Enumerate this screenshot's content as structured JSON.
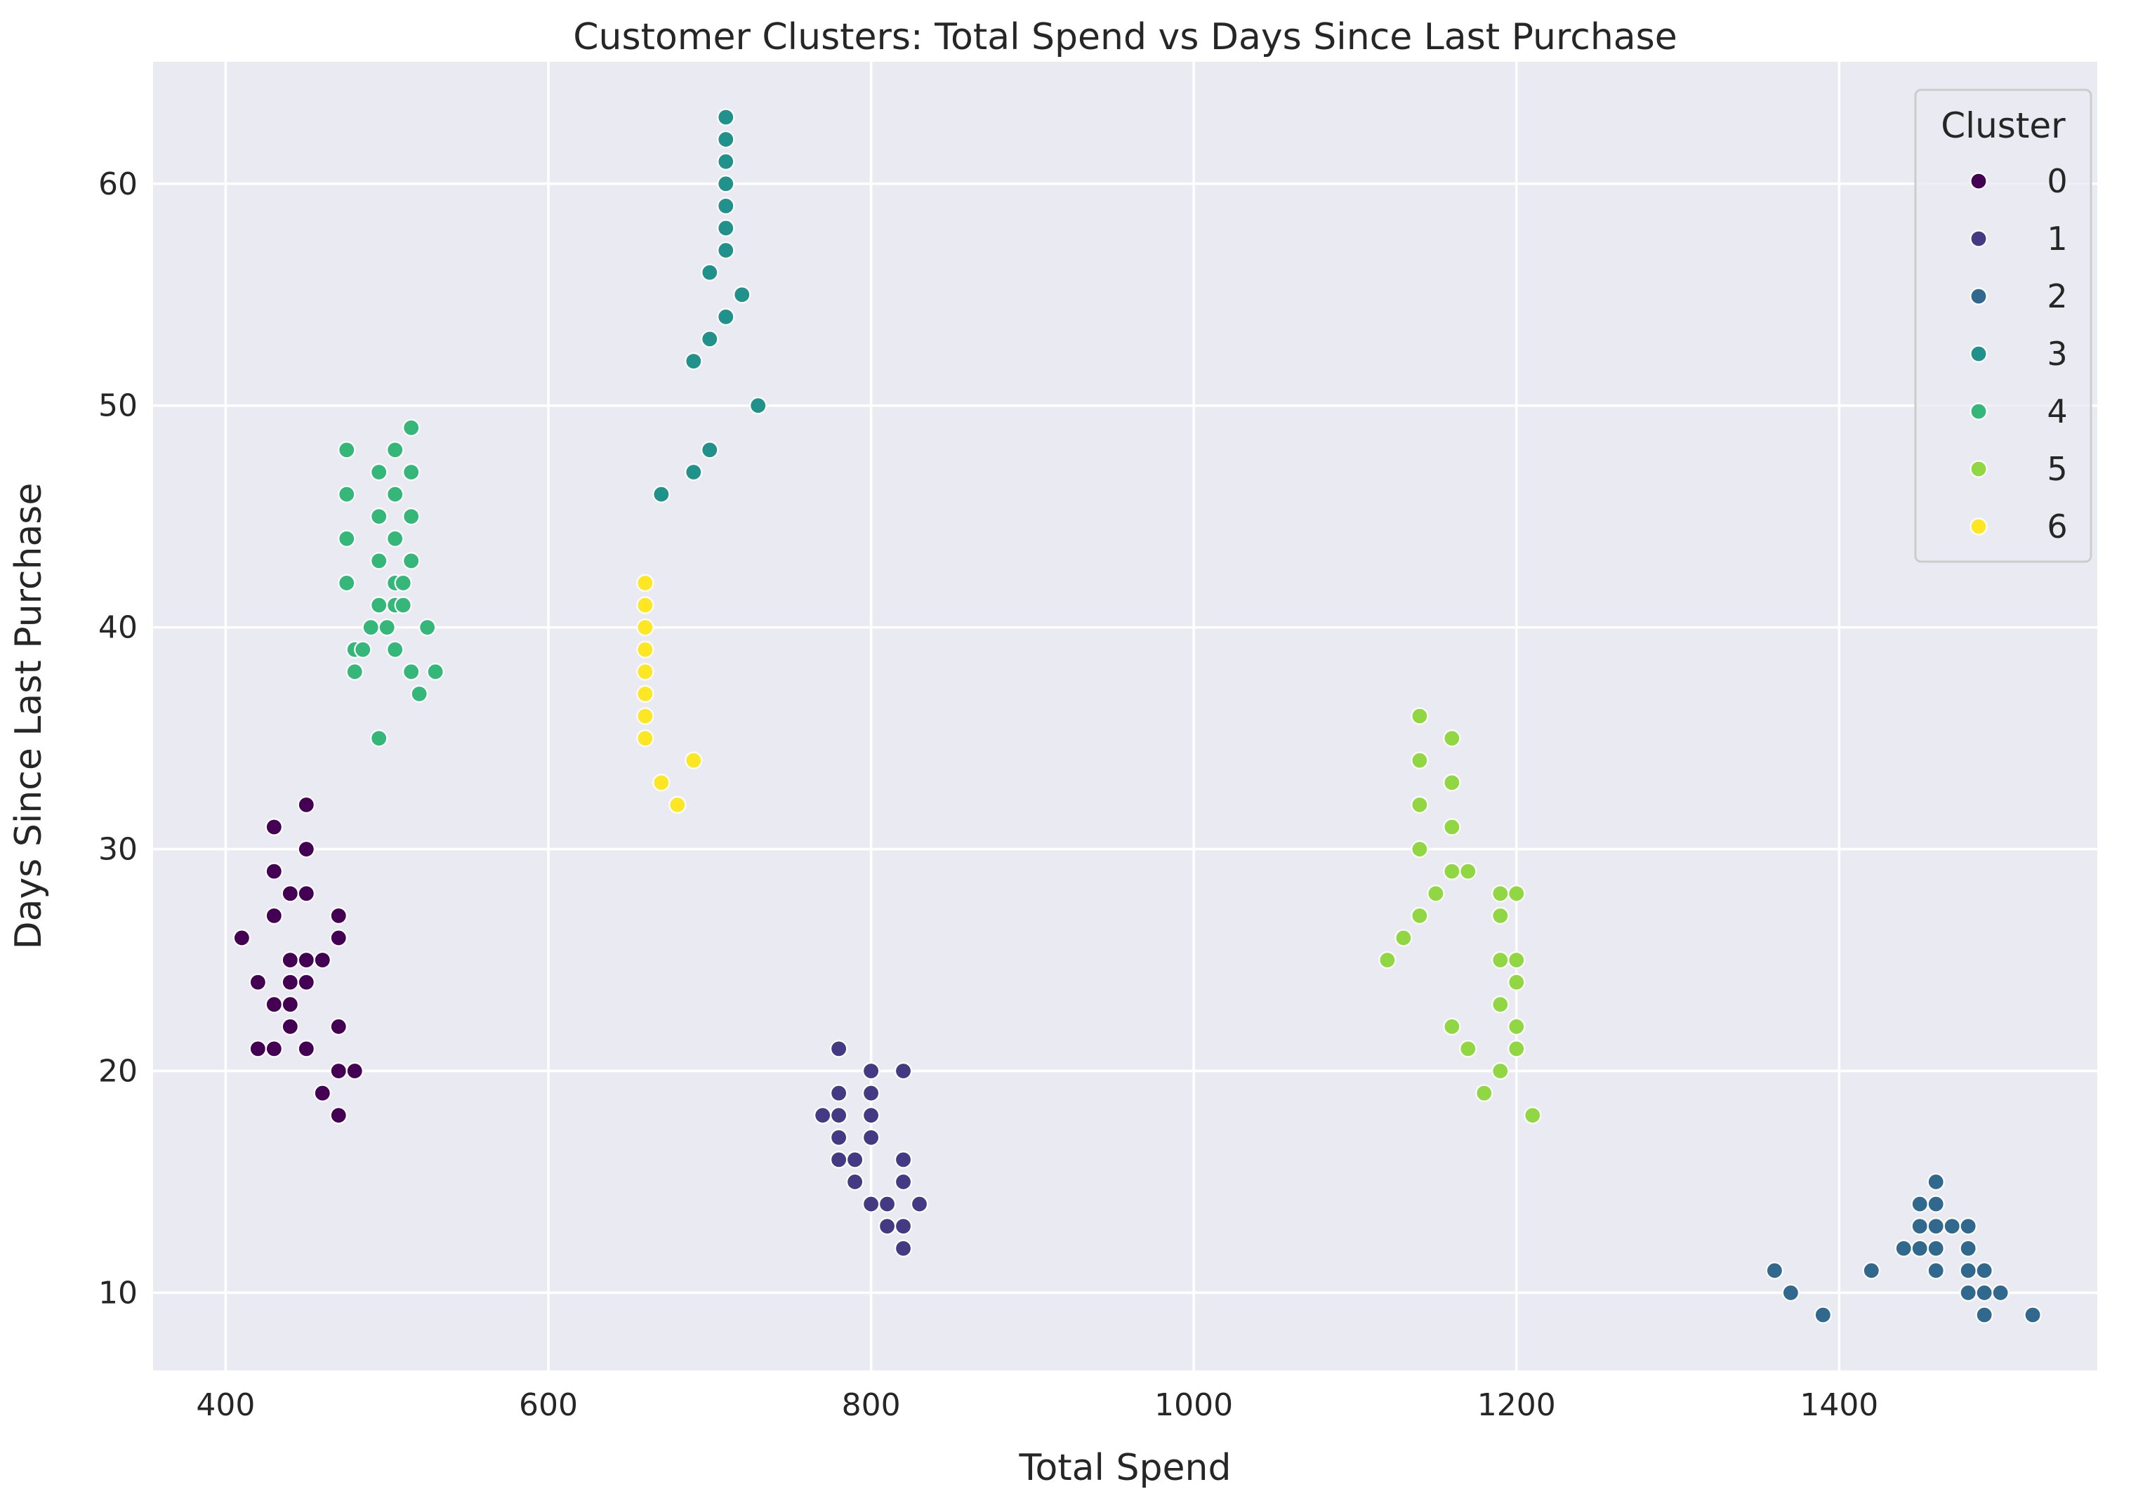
{
  "chart_data": {
    "type": "scatter",
    "title": "Customer Clusters: Total Spend vs Days Since Last Purchase",
    "xlabel": "Total Spend",
    "ylabel": "Days Since Last Purchase",
    "xlim": [
      355,
      1560
    ],
    "ylim": [
      6.5,
      65.5
    ],
    "xticks": [
      400,
      600,
      800,
      1000,
      1200,
      1400
    ],
    "yticks": [
      10,
      20,
      30,
      40,
      50,
      60
    ],
    "grid": true,
    "legend": {
      "title": "Cluster",
      "position": "top-right"
    },
    "series": [
      {
        "name": "0",
        "color": "#440154",
        "points": [
          [
            410,
            26
          ],
          [
            420,
            24
          ],
          [
            420,
            21
          ],
          [
            430,
            31
          ],
          [
            430,
            29
          ],
          [
            430,
            27
          ],
          [
            430,
            23
          ],
          [
            430,
            21
          ],
          [
            440,
            28
          ],
          [
            440,
            25
          ],
          [
            440,
            24
          ],
          [
            440,
            23
          ],
          [
            440,
            22
          ],
          [
            450,
            32
          ],
          [
            450,
            30
          ],
          [
            450,
            28
          ],
          [
            450,
            25
          ],
          [
            450,
            24
          ],
          [
            450,
            21
          ],
          [
            460,
            25
          ],
          [
            460,
            19
          ],
          [
            470,
            27
          ],
          [
            470,
            26
          ],
          [
            470,
            22
          ],
          [
            470,
            20
          ],
          [
            470,
            18
          ],
          [
            480,
            20
          ]
        ]
      },
      {
        "name": "1",
        "color": "#443983",
        "points": [
          [
            770,
            18
          ],
          [
            780,
            21
          ],
          [
            780,
            19
          ],
          [
            780,
            18
          ],
          [
            780,
            17
          ],
          [
            780,
            16
          ],
          [
            790,
            16
          ],
          [
            790,
            15
          ],
          [
            800,
            20
          ],
          [
            800,
            19
          ],
          [
            800,
            18
          ],
          [
            800,
            17
          ],
          [
            800,
            14
          ],
          [
            810,
            14
          ],
          [
            810,
            13
          ],
          [
            820,
            20
          ],
          [
            820,
            16
          ],
          [
            820,
            15
          ],
          [
            820,
            13
          ],
          [
            820,
            12
          ],
          [
            830,
            14
          ]
        ]
      },
      {
        "name": "2",
        "color": "#31688e",
        "points": [
          [
            1360,
            11
          ],
          [
            1370,
            10
          ],
          [
            1390,
            9
          ],
          [
            1420,
            11
          ],
          [
            1440,
            12
          ],
          [
            1450,
            14
          ],
          [
            1450,
            13
          ],
          [
            1450,
            12
          ],
          [
            1460,
            15
          ],
          [
            1460,
            14
          ],
          [
            1460,
            13
          ],
          [
            1460,
            12
          ],
          [
            1460,
            11
          ],
          [
            1470,
            13
          ],
          [
            1480,
            13
          ],
          [
            1480,
            12
          ],
          [
            1480,
            11
          ],
          [
            1480,
            10
          ],
          [
            1490,
            11
          ],
          [
            1490,
            10
          ],
          [
            1490,
            9
          ],
          [
            1500,
            10
          ],
          [
            1520,
            9
          ]
        ]
      },
      {
        "name": "3",
        "color": "#21918c",
        "points": [
          [
            670,
            46
          ],
          [
            690,
            52
          ],
          [
            690,
            47
          ],
          [
            700,
            56
          ],
          [
            700,
            53
          ],
          [
            700,
            48
          ],
          [
            710,
            63
          ],
          [
            710,
            62
          ],
          [
            710,
            61
          ],
          [
            710,
            60
          ],
          [
            710,
            59
          ],
          [
            710,
            58
          ],
          [
            710,
            57
          ],
          [
            710,
            54
          ],
          [
            720,
            55
          ],
          [
            730,
            50
          ]
        ]
      },
      {
        "name": "4",
        "color": "#35b779",
        "points": [
          [
            475,
            48
          ],
          [
            475,
            46
          ],
          [
            475,
            44
          ],
          [
            475,
            42
          ],
          [
            480,
            39
          ],
          [
            480,
            38
          ],
          [
            485,
            39
          ],
          [
            490,
            40
          ],
          [
            495,
            47
          ],
          [
            495,
            45
          ],
          [
            495,
            43
          ],
          [
            495,
            41
          ],
          [
            495,
            35
          ],
          [
            500,
            40
          ],
          [
            505,
            48
          ],
          [
            505,
            46
          ],
          [
            505,
            44
          ],
          [
            505,
            42
          ],
          [
            505,
            41
          ],
          [
            505,
            39
          ],
          [
            510,
            42
          ],
          [
            510,
            41
          ],
          [
            515,
            49
          ],
          [
            515,
            47
          ],
          [
            515,
            45
          ],
          [
            515,
            43
          ],
          [
            515,
            38
          ],
          [
            520,
            37
          ],
          [
            525,
            40
          ],
          [
            530,
            38
          ]
        ]
      },
      {
        "name": "5",
        "color": "#90d743",
        "points": [
          [
            1120,
            25
          ],
          [
            1130,
            26
          ],
          [
            1140,
            36
          ],
          [
            1140,
            34
          ],
          [
            1140,
            32
          ],
          [
            1140,
            30
          ],
          [
            1140,
            27
          ],
          [
            1150,
            28
          ],
          [
            1160,
            35
          ],
          [
            1160,
            33
          ],
          [
            1160,
            31
          ],
          [
            1160,
            29
          ],
          [
            1160,
            22
          ],
          [
            1170,
            29
          ],
          [
            1170,
            21
          ],
          [
            1180,
            19
          ],
          [
            1190,
            28
          ],
          [
            1190,
            27
          ],
          [
            1190,
            25
          ],
          [
            1190,
            23
          ],
          [
            1190,
            20
          ],
          [
            1200,
            28
          ],
          [
            1200,
            25
          ],
          [
            1200,
            24
          ],
          [
            1200,
            22
          ],
          [
            1200,
            21
          ],
          [
            1210,
            18
          ]
        ]
      },
      {
        "name": "6",
        "color": "#fde725",
        "points": [
          [
            660,
            42
          ],
          [
            660,
            41
          ],
          [
            660,
            40
          ],
          [
            660,
            39
          ],
          [
            660,
            38
          ],
          [
            660,
            37
          ],
          [
            660,
            36
          ],
          [
            660,
            35
          ],
          [
            670,
            33
          ],
          [
            680,
            32
          ],
          [
            690,
            34
          ]
        ]
      }
    ]
  }
}
